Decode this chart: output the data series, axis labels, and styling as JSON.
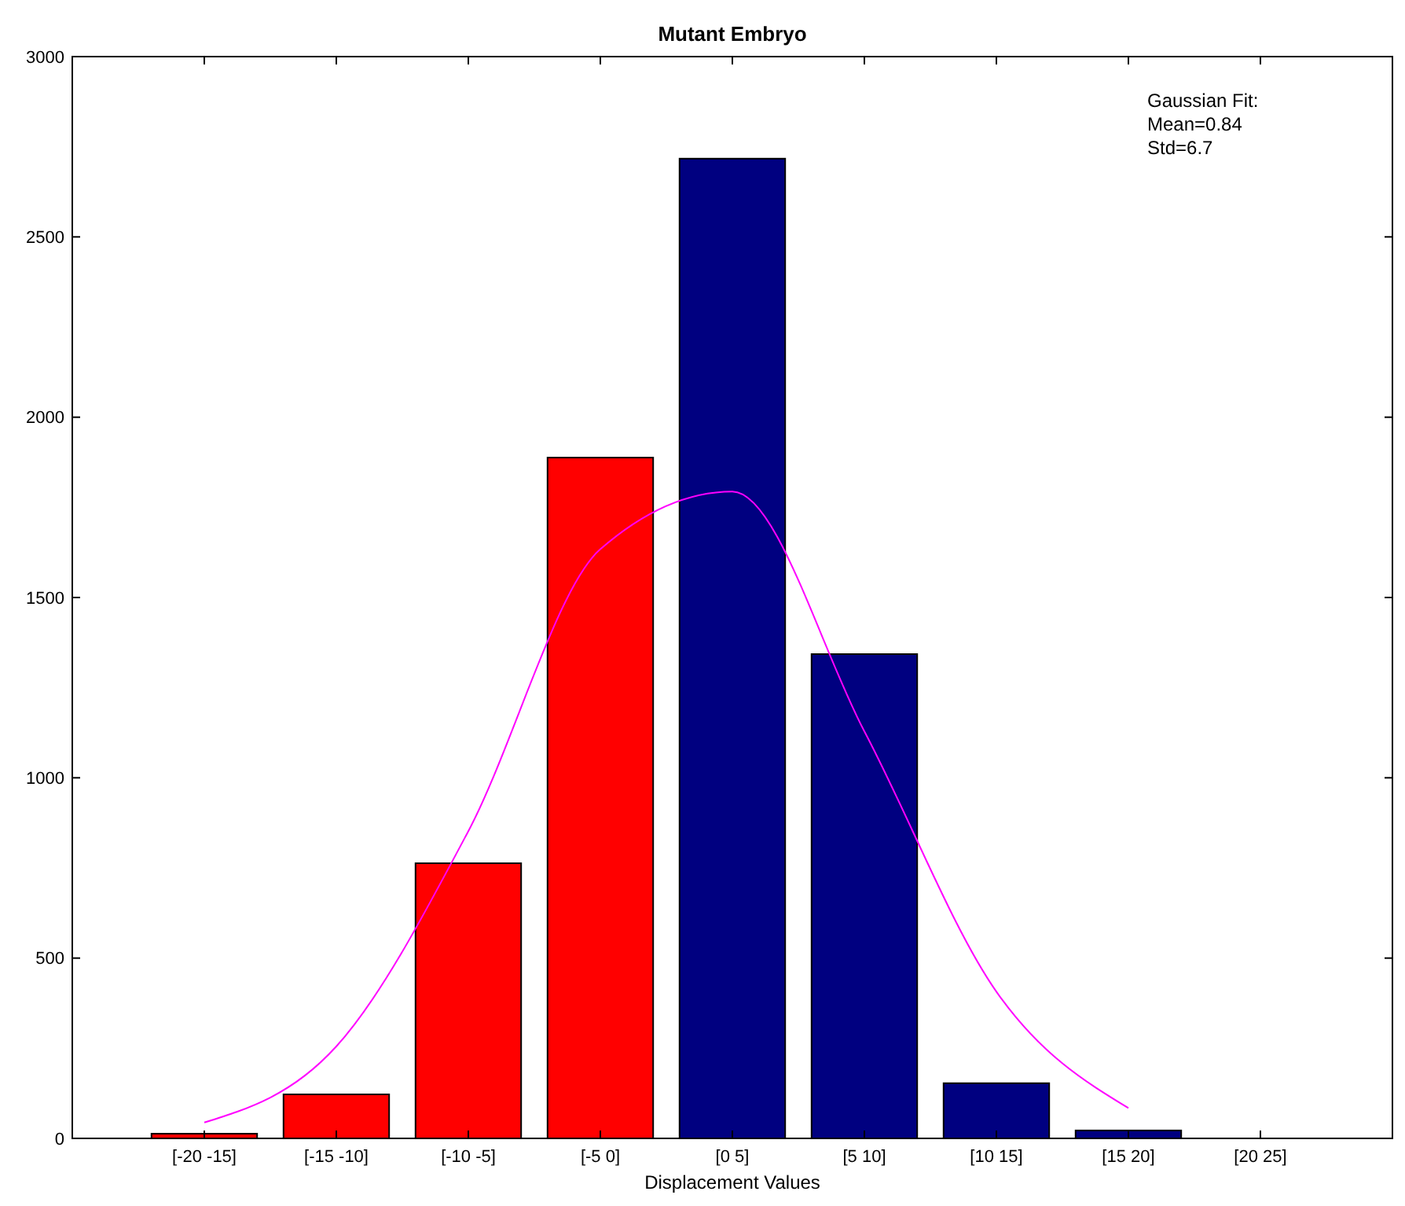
{
  "chart_data": {
    "type": "bar",
    "title": "Mutant Embryo",
    "xlabel": "Displacement Values",
    "categories": [
      "[-20 -15]",
      "[-15 -10]",
      "[-10 -5]",
      "[-5 0]",
      "[0 5]",
      "[5 10]",
      "[10 15]",
      "[15 20]",
      "[20 25]"
    ],
    "series": [
      {
        "colors": [
          "#ff0000",
          "#ff0000",
          "#ff0000",
          "#ff0000",
          "#000080",
          "#000080",
          "#000080",
          "#000080",
          "#000080"
        ],
        "values": [
          13,
          122,
          763,
          1888,
          2717,
          1343,
          153,
          22,
          0
        ]
      },
      {
        "type": "line",
        "color": "#ff00ff",
        "values": [
          44,
          255,
          852,
          1634,
          1794,
          1129,
          407,
          84,
          null
        ]
      }
    ],
    "ylim": [
      0,
      3000
    ],
    "yticks": [
      0,
      500,
      1000,
      1500,
      2000,
      2500,
      3000
    ],
    "grid": false,
    "annotations": [
      "Gaussian Fit:",
      "Mean=0.84",
      "Std=6.7"
    ]
  }
}
